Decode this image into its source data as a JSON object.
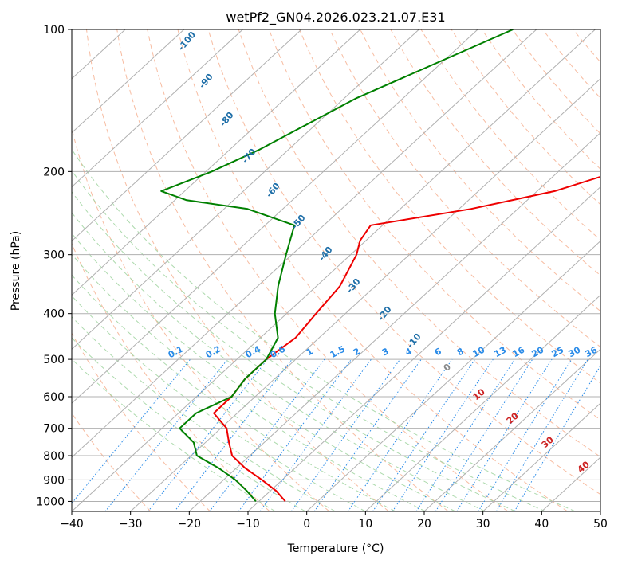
{
  "chart_data": {
    "type": "line",
    "title": "wetPf2_GN04.2026.023.21.07.E31",
    "xlabel": "Temperature (°C)",
    "ylabel": "Pressure (hPa)",
    "xlim": [
      -40,
      50
    ],
    "ylim": [
      1050,
      100
    ],
    "y_scale": "log",
    "grid": true,
    "x_ticks": [
      -40,
      -30,
      -20,
      -10,
      0,
      10,
      20,
      30,
      40,
      50
    ],
    "y_ticks": [
      100,
      200,
      300,
      400,
      500,
      600,
      700,
      800,
      900,
      1000
    ],
    "isotherm_labels": [
      "-100",
      "-90",
      "-80",
      "-70",
      "-60",
      "-50",
      "-40",
      "-30",
      "-20",
      "-10"
    ],
    "mixing_ratio_labels": [
      "0.1",
      "0.2",
      "0.4",
      "0.6",
      "1",
      "1.5",
      "2",
      "3",
      "4",
      "6",
      "8",
      "10",
      "13",
      "16",
      "20",
      "25",
      "30",
      "36"
    ],
    "moist_adiabat_labels": [
      "0",
      "10",
      "20",
      "30",
      "40"
    ],
    "colors": {
      "temperature": "#ee0000",
      "dewpoint": "#008000",
      "isotherm_label": "#1f6fa8",
      "mixing_ratio": "#2a8be8",
      "moist_label": "#cc2222",
      "dry_adiabat": "#f4a582",
      "moist_adiabat": "#9fd49f",
      "grid": "#b0b0b0"
    },
    "series": [
      {
        "role": "temperature",
        "points": [
          [
            100,
            20
          ],
          [
            110,
            16
          ],
          [
            120,
            11
          ],
          [
            140,
            4
          ],
          [
            160,
            -3
          ],
          [
            180,
            -7
          ],
          [
            200,
            -10
          ],
          [
            220,
            -17
          ],
          [
            240,
            -28
          ],
          [
            260,
            -42
          ],
          [
            280,
            -41
          ],
          [
            300,
            -39
          ],
          [
            350,
            -36
          ],
          [
            400,
            -35
          ],
          [
            450,
            -34
          ],
          [
            500,
            -35
          ],
          [
            550,
            -35
          ],
          [
            600,
            -34
          ],
          [
            650,
            -34
          ],
          [
            700,
            -29
          ],
          [
            750,
            -26
          ],
          [
            800,
            -23
          ],
          [
            850,
            -18.5
          ],
          [
            900,
            -13.5
          ],
          [
            950,
            -9
          ],
          [
            1000,
            -5.5
          ]
        ]
      },
      {
        "role": "dewpoint",
        "points": [
          [
            100,
            -54
          ],
          [
            140,
            -68
          ],
          [
            180,
            -75
          ],
          [
            200,
            -79
          ],
          [
            220,
            -84
          ],
          [
            230,
            -78
          ],
          [
            240,
            -66
          ],
          [
            260,
            -55
          ],
          [
            300,
            -51
          ],
          [
            350,
            -46.5
          ],
          [
            400,
            -42
          ],
          [
            450,
            -37
          ],
          [
            500,
            -35
          ],
          [
            550,
            -35
          ],
          [
            600,
            -34
          ],
          [
            650,
            -37
          ],
          [
            700,
            -37
          ],
          [
            750,
            -32
          ],
          [
            800,
            -29
          ],
          [
            850,
            -23
          ],
          [
            900,
            -18
          ],
          [
            950,
            -14
          ],
          [
            1000,
            -10.5
          ]
        ]
      }
    ]
  }
}
